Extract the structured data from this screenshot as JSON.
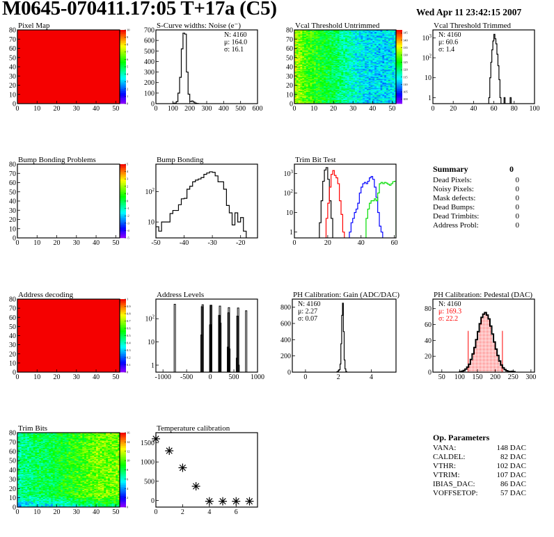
{
  "header": {
    "title": "M0645-070411.17:05 T+17a (C5)",
    "date": "Wed Apr 11 23:42:15 2007"
  },
  "summary": {
    "title": "Summary",
    "total": "0",
    "rows": [
      {
        "label": "Dead Pixels:",
        "value": "0"
      },
      {
        "label": "Noisy Pixels:",
        "value": "0"
      },
      {
        "label": "Mask defects:",
        "value": "0"
      },
      {
        "label": "Dead Bumps:",
        "value": "0"
      },
      {
        "label": "Dead Trimbits:",
        "value": "0"
      },
      {
        "label": "Address Probl:",
        "value": "0"
      }
    ]
  },
  "op_parameters": {
    "title": "Op. Parameters",
    "rows": [
      {
        "label": "VANA:",
        "value": "148 DAC"
      },
      {
        "label": "CALDEL:",
        "value": "82 DAC"
      },
      {
        "label": "VTHR:",
        "value": "102 DAC"
      },
      {
        "label": "VTRIM:",
        "value": "107 DAC"
      },
      {
        "label": "IBIAS_DAC:",
        "value": "86 DAC"
      },
      {
        "label": "VOFFSETOP:",
        "value": "57 DAC"
      }
    ]
  },
  "colors": {
    "frame": "#000000",
    "trim_series": [
      "#000000",
      "#ff0000",
      "#0000ff",
      "#00dd00"
    ],
    "fit": "#ff0000"
  },
  "chart_data": [
    {
      "type": "heatmap",
      "title": "Pixel Map",
      "xlim": [
        0,
        52
      ],
      "ylim": [
        0,
        80
      ],
      "x_ticks": [
        0,
        10,
        20,
        30,
        40,
        50
      ],
      "y_ticks": [
        0,
        10,
        20,
        30,
        40,
        50,
        60,
        70,
        80
      ],
      "zlim": [
        0,
        10
      ],
      "z_ticks": [
        0,
        1,
        2,
        3,
        4,
        5,
        6,
        7,
        8,
        9,
        10
      ],
      "uniform_value": 10
    },
    {
      "type": "histogram",
      "title": "S-Curve widths: Noise (e⁻)",
      "xlim": [
        0,
        600
      ],
      "ylim": [
        0,
        700
      ],
      "x_ticks": [
        0,
        100,
        200,
        300,
        400,
        500,
        600
      ],
      "y_ticks": [
        0,
        100,
        200,
        300,
        400,
        500,
        600,
        700
      ],
      "stats_position": "top-right",
      "stats": [
        {
          "label": "N:",
          "value": "4160"
        },
        {
          "label": "μ:",
          "value": "164.0"
        },
        {
          "label": "σ:",
          "value": "16.1"
        }
      ],
      "bin_start": 100,
      "bin_width": 10,
      "counts": [
        5,
        5,
        20,
        100,
        250,
        520,
        670,
        660,
        300,
        90,
        20,
        25,
        15,
        5,
        2
      ]
    },
    {
      "type": "heatmap",
      "title": "Vcal Threshold Untrimmed",
      "xlim": [
        0,
        52
      ],
      "ylim": [
        0,
        80
      ],
      "x_ticks": [
        0,
        10,
        20,
        30,
        40,
        50
      ],
      "y_ticks": [
        0,
        10,
        20,
        30,
        40,
        50,
        60,
        70,
        80
      ],
      "zlim": [
        97,
        147
      ],
      "z_ticks": [
        100,
        105,
        110,
        115,
        120,
        125,
        130,
        135,
        140,
        145
      ],
      "approx_column_mean": [
        133,
        128,
        126,
        124,
        122,
        119,
        116,
        114,
        113,
        113,
        114
      ]
    },
    {
      "type": "histogram",
      "title": "Vcal Threshold Trimmed",
      "xlim": [
        0,
        100
      ],
      "ylim": [
        0.5,
        2500
      ],
      "log_y": true,
      "x_ticks": [
        0,
        20,
        40,
        60,
        80,
        100
      ],
      "y_ticks": [
        1,
        10,
        100,
        1000
      ],
      "stats_position": "top-left",
      "stats": [
        {
          "label": "N:",
          "value": "4160"
        },
        {
          "label": "μ:",
          "value": "60.6"
        },
        {
          "label": "σ:",
          "value": " 1.4"
        }
      ],
      "bin_start": 55,
      "bin_width": 1,
      "counts": [
        1,
        10,
        60,
        250,
        700,
        1500,
        900,
        500,
        150,
        40,
        8,
        1,
        0,
        0,
        0,
        1,
        0,
        0,
        0,
        0,
        0,
        1
      ]
    },
    {
      "type": "heatmap",
      "title": "Bump Bonding Problems",
      "xlim": [
        0,
        52
      ],
      "ylim": [
        0,
        80
      ],
      "x_ticks": [
        0,
        10,
        20,
        30,
        40,
        50
      ],
      "y_ticks": [
        0,
        10,
        20,
        30,
        40,
        50,
        60,
        70,
        80
      ],
      "zlim": [
        -5,
        5
      ],
      "z_ticks": [
        -5,
        -4,
        -3,
        -2,
        -1,
        0,
        1,
        2,
        3,
        4,
        5
      ],
      "empty": true
    },
    {
      "type": "histogram",
      "title": "Bump Bonding",
      "xlim": [
        -50,
        -14
      ],
      "ylim": [
        3,
        800
      ],
      "log_y": true,
      "x_ticks": [
        -50,
        -40,
        -30,
        -20
      ],
      "y_ticks": [
        10,
        100
      ],
      "bin_start": -50,
      "bin_width": 1,
      "counts": [
        7,
        5,
        10,
        10,
        10,
        19,
        24,
        24,
        37,
        58,
        60,
        120,
        150,
        210,
        240,
        260,
        290,
        370,
        410,
        450,
        430,
        330,
        210,
        210,
        120,
        35,
        20,
        8,
        20,
        10,
        14,
        5
      ]
    },
    {
      "type": "histogram",
      "title": "Trim Bit Test",
      "xlim": [
        0,
        61
      ],
      "ylim": [
        0.5,
        3000
      ],
      "log_y": true,
      "x_ticks": [
        0,
        20,
        40,
        60
      ],
      "y_ticks": [
        1,
        10,
        100,
        1000
      ],
      "series": [
        {
          "bin_start": 15,
          "bin_width": 1,
          "counts": [
            3,
            40,
            400,
            1500,
            2000,
            500,
            40,
            5
          ]
        },
        {
          "bin_start": 19,
          "bin_width": 1,
          "counts": [
            5,
            30,
            200,
            900,
            1400,
            800,
            600,
            300,
            40,
            8,
            1
          ]
        },
        {
          "bin_start": 33,
          "bin_width": 1,
          "counts": [
            1,
            3,
            5,
            10,
            15,
            30,
            100,
            200,
            300,
            350,
            300,
            400,
            600,
            700,
            500,
            200,
            60,
            10,
            2,
            1
          ]
        },
        {
          "bin_start": 43,
          "bin_width": 1,
          "counts": [
            5,
            15,
            30,
            40,
            40,
            50,
            40,
            100,
            300,
            350,
            300,
            350,
            320,
            280,
            250,
            300,
            380,
            400
          ]
        }
      ]
    },
    {
      "type": "heatmap",
      "title": "Address decoding",
      "xlim": [
        0,
        52
      ],
      "ylim": [
        0,
        80
      ],
      "x_ticks": [
        0,
        10,
        20,
        30,
        40,
        50
      ],
      "y_ticks": [
        0,
        10,
        20,
        30,
        40,
        50,
        60,
        70,
        80
      ],
      "zlim": [
        0,
        1
      ],
      "z_ticks": [
        0,
        0.1,
        0.2,
        0.3,
        0.4,
        0.5,
        0.6,
        0.7,
        0.8,
        0.9,
        1
      ],
      "uniform_value": 1
    },
    {
      "type": "bar",
      "title": "Address Levels",
      "xlim": [
        -1150,
        1000
      ],
      "ylim": [
        0.5,
        700
      ],
      "log_y": true,
      "x_ticks": [
        -1000,
        -500,
        0,
        500,
        1000
      ],
      "y_ticks": [
        1,
        10,
        100
      ],
      "bars": [
        {
          "x": -750,
          "v": 420
        },
        {
          "x": -185,
          "v": 20
        },
        {
          "x": -175,
          "v": 330
        },
        {
          "x": -160,
          "v": 400
        },
        {
          "x": 0,
          "v": 55
        },
        {
          "x": 10,
          "v": 380
        },
        {
          "x": 20,
          "v": 380
        },
        {
          "x": 190,
          "v": 140
        },
        {
          "x": 205,
          "v": 350
        },
        {
          "x": 215,
          "v": 65
        },
        {
          "x": 375,
          "v": 6
        },
        {
          "x": 385,
          "v": 180
        },
        {
          "x": 395,
          "v": 300
        },
        {
          "x": 405,
          "v": 5
        },
        {
          "x": 565,
          "v": 2
        },
        {
          "x": 575,
          "v": 130
        },
        {
          "x": 590,
          "v": 290
        },
        {
          "x": 600,
          "v": 1
        },
        {
          "x": 760,
          "v": 220
        }
      ]
    },
    {
      "type": "histogram",
      "title": "PH Calibration: Gain (ADC/DAC)",
      "xlim": [
        -0.8,
        5.5
      ],
      "ylim": [
        0,
        900
      ],
      "x_ticks": [
        0,
        2,
        4
      ],
      "y_ticks": [
        0,
        200,
        400,
        600,
        800
      ],
      "stats_position": "top-left",
      "stats": [
        {
          "label": "N:",
          "value": "4160"
        },
        {
          "label": "μ:",
          "value": "2.27"
        },
        {
          "label": "σ:",
          "value": "0.07"
        }
      ],
      "bin_start": 1.9,
      "bin_width": 0.05,
      "counts": [
        5,
        10,
        20,
        30,
        100,
        350,
        700,
        850,
        500,
        150,
        40,
        10
      ]
    },
    {
      "type": "histogram",
      "title": "PH Calibration: Pedestal (DAC)",
      "xlim": [
        25,
        310
      ],
      "ylim": [
        0,
        92
      ],
      "x_ticks": [
        50,
        100,
        150,
        200,
        250,
        300
      ],
      "y_ticks": [
        0,
        20,
        40,
        60,
        80
      ],
      "stats_position": "top-left",
      "stats": [
        {
          "label": "N:",
          "value": "4160"
        },
        {
          "label": "μ:",
          "value": "169.3",
          "color": "#ff0000"
        },
        {
          "label": "σ:",
          "value": "22.2",
          "color": "#ff0000"
        }
      ],
      "bin_start": 100,
      "bin_width": 5,
      "counts": [
        0.6,
        1.1,
        2.1,
        3.8,
        6.3,
        10,
        16,
        23,
        31,
        41,
        51,
        61,
        69,
        73,
        75,
        72,
        67,
        58,
        48,
        38,
        29,
        21,
        14,
        9,
        5.5,
        3.2,
        1.8,
        0.9,
        0.5,
        1,
        0.5
      ],
      "fit_range": [
        124,
        220
      ],
      "fit_marker_height": 52
    },
    {
      "type": "heatmap",
      "title": "Trim Bits",
      "xlim": [
        0,
        52
      ],
      "ylim": [
        0,
        80
      ],
      "x_ticks": [
        0,
        10,
        20,
        30,
        40,
        50
      ],
      "y_ticks": [
        0,
        10,
        20,
        30,
        40,
        50,
        60,
        70,
        80
      ],
      "zlim": [
        0,
        16
      ],
      "z_ticks": [
        0,
        2,
        4,
        6,
        8,
        10,
        12,
        14,
        16
      ],
      "approx_column_mean": [
        7,
        7.5,
        8,
        8,
        8.5,
        9,
        9.5,
        10,
        10.5,
        10.5,
        10.5
      ]
    },
    {
      "type": "scatter",
      "title": "Temperature calibration",
      "xlim": [
        0,
        7.6
      ],
      "ylim": [
        -170,
        1760
      ],
      "x_ticks": [
        0,
        2,
        4,
        6
      ],
      "y_ticks": [
        0,
        500,
        1000,
        1500
      ],
      "marker": "asterisk",
      "x": [
        0,
        1,
        2,
        3,
        4,
        5,
        6,
        7
      ],
      "y": [
        1600,
        1290,
        850,
        370,
        -20,
        -20,
        -20,
        -20
      ]
    }
  ]
}
